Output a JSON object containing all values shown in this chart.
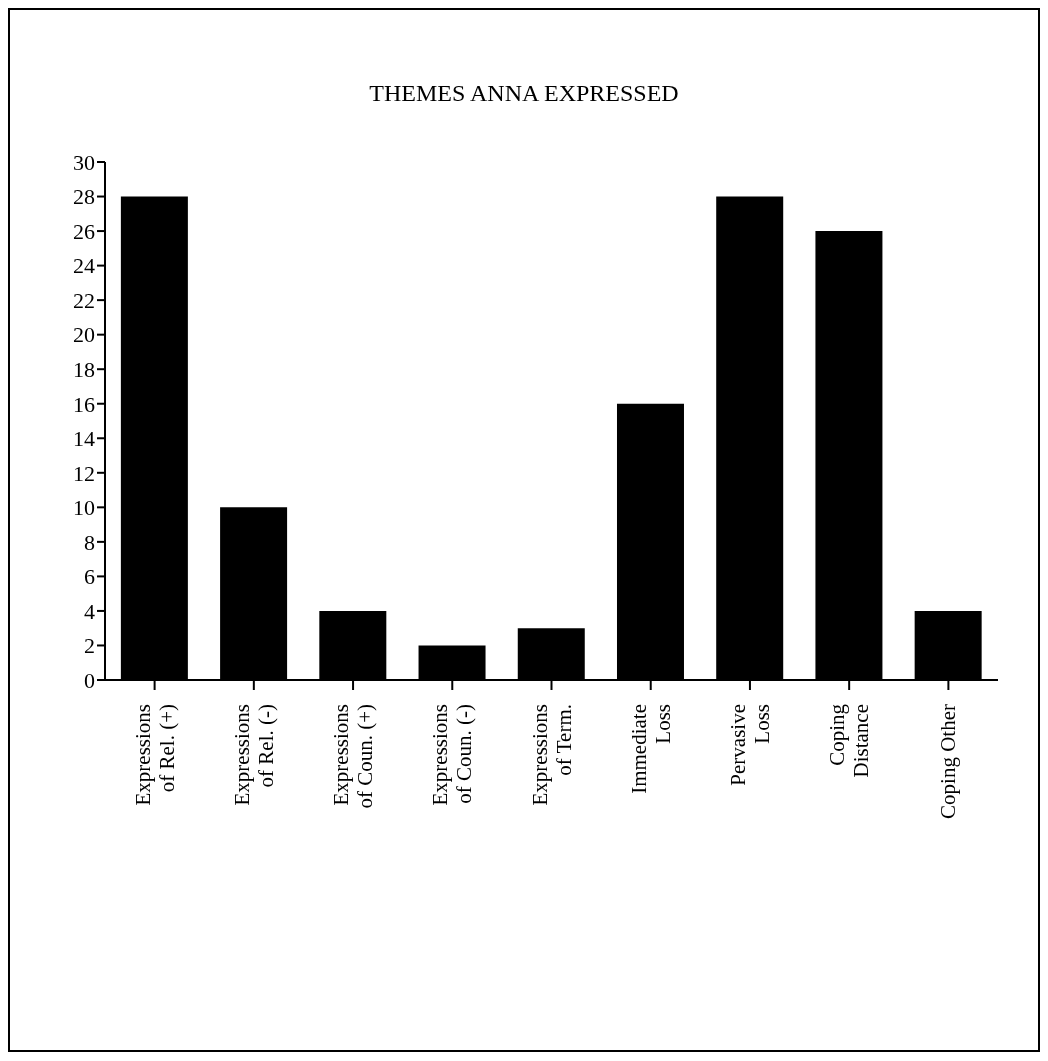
{
  "chart_data": {
    "type": "bar",
    "title": "THEMES ANNA EXPRESSED",
    "categories": [
      "Expressions of Rel. (+)",
      "Expressions of Rel. (-)",
      "Expressions of Coun. (+)",
      "Expressions of Coun. (-)",
      "Expressions of Term.",
      "Immediate Loss",
      "Pervasive Loss",
      "Coping Distance",
      "Coping Other"
    ],
    "values": [
      28,
      10,
      4,
      2,
      3,
      16,
      28,
      26,
      4
    ],
    "color": "#000000",
    "ylim": [
      0,
      30
    ],
    "yticks": [
      0,
      2,
      4,
      6,
      8,
      10,
      12,
      14,
      16,
      18,
      20,
      22,
      24,
      26,
      28,
      30
    ],
    "grid": false,
    "legend": false
  }
}
